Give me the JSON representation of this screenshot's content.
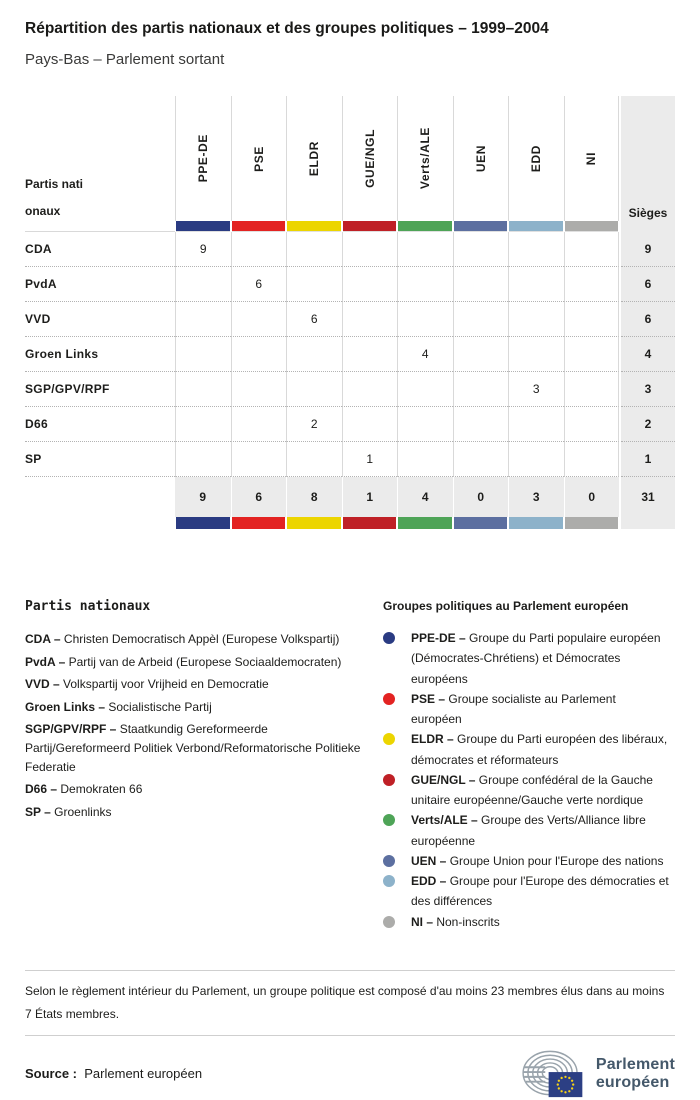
{
  "page": {
    "title": "Répartition des partis nationaux et des groupes politiques – 1999–2004",
    "subtitle": "Pays-Bas – Parlement sortant"
  },
  "table": {
    "row_header_label": "Partis nationaux",
    "seats_label": "Sièges",
    "groups": [
      {
        "code": "PPE-DE",
        "color": "#2a3b82"
      },
      {
        "code": "PSE",
        "color": "#e32322"
      },
      {
        "code": "ELDR",
        "color": "#ecd500"
      },
      {
        "code": "GUE/NGL",
        "color": "#bf2026"
      },
      {
        "code": "Verts/ALE",
        "color": "#4ea457"
      },
      {
        "code": "UEN",
        "color": "#5c6fa0"
      },
      {
        "code": "EDD",
        "color": "#8db2ca"
      },
      {
        "code": "NI",
        "color": "#acacaa"
      }
    ],
    "rows": [
      {
        "party": "CDA",
        "cells": [
          "9",
          "",
          "",
          "",
          "",
          "",
          "",
          ""
        ],
        "seats": "9"
      },
      {
        "party": "PvdA",
        "cells": [
          "",
          "6",
          "",
          "",
          "",
          "",
          "",
          ""
        ],
        "seats": "6"
      },
      {
        "party": "VVD",
        "cells": [
          "",
          "",
          "6",
          "",
          "",
          "",
          "",
          ""
        ],
        "seats": "6"
      },
      {
        "party": "Groen Links",
        "cells": [
          "",
          "",
          "",
          "",
          "4",
          "",
          "",
          ""
        ],
        "seats": "4"
      },
      {
        "party": "SGP/GPV/RPF",
        "cells": [
          "",
          "",
          "",
          "",
          "",
          "",
          "3",
          ""
        ],
        "seats": "3"
      },
      {
        "party": "D66",
        "cells": [
          "",
          "",
          "2",
          "",
          "",
          "",
          "",
          ""
        ],
        "seats": "2"
      },
      {
        "party": "SP",
        "cells": [
          "",
          "",
          "",
          "1",
          "",
          "",
          "",
          ""
        ],
        "seats": "1"
      }
    ],
    "totals": {
      "cells": [
        "9",
        "6",
        "8",
        "1",
        "4",
        "0",
        "3",
        "0"
      ],
      "seats": "31"
    }
  },
  "chart_data": {
    "type": "table",
    "title": "Répartition des partis nationaux et des groupes politiques – 1999–2004",
    "subtitle": "Pays-Bas – Parlement sortant",
    "columns": [
      "PPE-DE",
      "PSE",
      "ELDR",
      "GUE/NGL",
      "Verts/ALE",
      "UEN",
      "EDD",
      "NI",
      "Sièges"
    ],
    "rows": [
      [
        "CDA",
        9,
        null,
        null,
        null,
        null,
        null,
        null,
        null,
        9
      ],
      [
        "PvdA",
        null,
        6,
        null,
        null,
        null,
        null,
        null,
        null,
        6
      ],
      [
        "VVD",
        null,
        null,
        6,
        null,
        null,
        null,
        null,
        null,
        6
      ],
      [
        "Groen Links",
        null,
        null,
        null,
        null,
        4,
        null,
        null,
        null,
        4
      ],
      [
        "SGP/GPV/RPF",
        null,
        null,
        null,
        null,
        null,
        null,
        3,
        null,
        3
      ],
      [
        "D66",
        null,
        null,
        2,
        null,
        null,
        null,
        null,
        null,
        2
      ],
      [
        "SP",
        null,
        null,
        null,
        1,
        null,
        null,
        null,
        null,
        1
      ]
    ],
    "totals": [
      9,
      6,
      8,
      1,
      4,
      0,
      3,
      0,
      31
    ]
  },
  "legend_parties": {
    "heading": "Partis nationaux",
    "items": [
      {
        "abbr": "CDA",
        "name": "Christen Democratisch Appèl (Europese Volkspartij)"
      },
      {
        "abbr": "PvdA",
        "name": "Partij van de Arbeid (Europese Sociaaldemocraten)"
      },
      {
        "abbr": "VVD",
        "name": "Volkspartij voor Vrijheid en Democratie"
      },
      {
        "abbr": "Groen Links",
        "name": "Socialistische Partij"
      },
      {
        "abbr": "SGP/GPV/RPF",
        "name": "Staatkundig Gereformeerde Partij/Gereformeerd Politiek Verbond/Reformatorische Politieke Federatie"
      },
      {
        "abbr": "D66",
        "name": "Demokraten 66"
      },
      {
        "abbr": "SP",
        "name": "Groenlinks"
      }
    ]
  },
  "legend_groups": {
    "heading": "Groupes politiques au Parlement européen",
    "items": [
      {
        "abbr": "PPE-DE",
        "color": "#2a3b82",
        "name": "Groupe du Parti populaire européen (Démocrates-Chrétiens) et Démocrates européens"
      },
      {
        "abbr": "PSE",
        "color": "#e32322",
        "name": "Groupe socialiste au Parlement européen"
      },
      {
        "abbr": "ELDR",
        "color": "#ecd500",
        "name": "Groupe du Parti européen des libéraux, démocrates et réformateurs"
      },
      {
        "abbr": "GUE/NGL",
        "color": "#bf2026",
        "name": "Groupe confédéral de la Gauche unitaire européenne/Gauche verte nordique"
      },
      {
        "abbr": "Verts/ALE",
        "color": "#4ea457",
        "name": "Groupe des Verts/Alliance libre européenne"
      },
      {
        "abbr": "UEN",
        "color": "#5c6fa0",
        "name": "Groupe Union pour l'Europe des nations"
      },
      {
        "abbr": "EDD",
        "color": "#8db2ca",
        "name": "Groupe pour l'Europe des démocraties et des différences"
      },
      {
        "abbr": "NI",
        "color": "#acacaa",
        "name": "Non-inscrits"
      }
    ]
  },
  "footer": {
    "note": "Selon le règlement intérieur du Parlement, un groupe politique est composé d'au moins 23 membres élus dans au moins 7 États membres.",
    "source_label": "Source :",
    "source_value": "Parlement européen",
    "logo_line1": "Parlement",
    "logo_line2": "européen"
  }
}
